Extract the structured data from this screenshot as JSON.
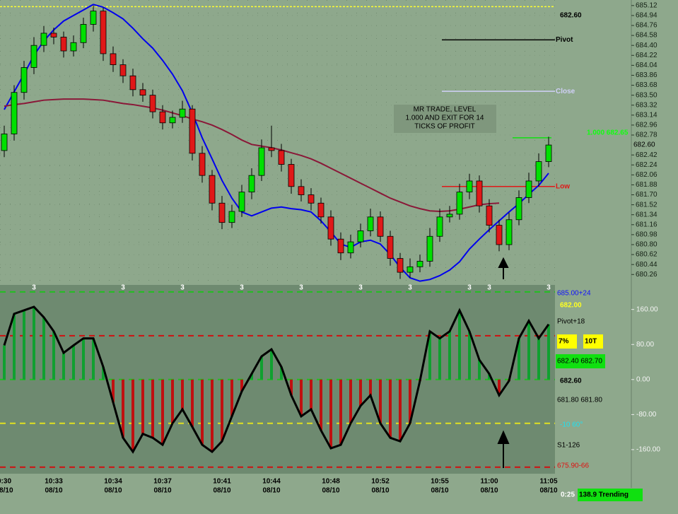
{
  "chart_data": [
    {
      "type": "candlestick",
      "categories": [
        "0:30",
        null,
        null,
        null,
        null,
        "10:33",
        null,
        null,
        null,
        null,
        null,
        "10:34",
        null,
        null,
        null,
        null,
        "10:37",
        null,
        null,
        null,
        null,
        null,
        "10:41",
        null,
        null,
        null,
        null,
        "10:44",
        null,
        null,
        null,
        null,
        null,
        "10:48",
        null,
        null,
        null,
        null,
        "10:52",
        null,
        null,
        null,
        null,
        null,
        "10:55",
        null,
        null,
        null,
        null,
        "11:00",
        null,
        null,
        null,
        null,
        null,
        "11:05"
      ],
      "dates": [
        "08/10",
        null,
        null,
        null,
        null,
        "08/10",
        null,
        null,
        null,
        null,
        null,
        "08/10",
        null,
        null,
        null,
        null,
        "08/10",
        null,
        null,
        null,
        null,
        null,
        "08/10",
        null,
        null,
        null,
        null,
        "08/10",
        null,
        null,
        null,
        null,
        null,
        "08/10",
        null,
        null,
        null,
        null,
        "08/10",
        null,
        null,
        null,
        null,
        null,
        "08/10",
        null,
        null,
        null,
        null,
        "08/10",
        null,
        null,
        null,
        null,
        null,
        "08/10"
      ],
      "open": [
        682.5,
        682.8,
        683.55,
        684.0,
        684.4,
        684.62,
        684.55,
        684.3,
        684.45,
        684.78,
        685.02,
        684.25,
        684.05,
        683.85,
        683.6,
        683.5,
        683.2,
        683.0,
        683.1,
        683.25,
        682.45,
        682.05,
        681.55,
        681.2,
        681.4,
        681.75,
        682.05,
        682.55,
        682.5,
        682.25,
        681.85,
        681.7,
        681.55,
        681.3,
        680.9,
        680.65,
        680.85,
        681.05,
        681.3,
        680.95,
        680.55,
        680.3,
        680.4,
        680.5,
        680.95,
        681.3,
        681.35,
        681.75,
        681.95,
        681.5,
        681.15,
        680.8,
        681.25,
        681.65,
        681.95,
        682.3
      ],
      "high": [
        682.95,
        683.68,
        684.12,
        684.55,
        684.75,
        684.72,
        684.65,
        684.58,
        684.9,
        685.12,
        685.08,
        684.38,
        684.15,
        683.98,
        683.72,
        683.6,
        683.32,
        683.22,
        683.4,
        683.32,
        682.58,
        682.15,
        681.68,
        681.52,
        681.88,
        682.18,
        682.7,
        682.95,
        682.62,
        682.35,
        681.98,
        681.82,
        681.65,
        681.42,
        681.02,
        680.98,
        681.18,
        681.45,
        681.4,
        681.05,
        680.65,
        680.55,
        680.62,
        681.1,
        681.45,
        681.5,
        681.9,
        682.08,
        682.05,
        681.62,
        681.25,
        681.38,
        681.78,
        682.1,
        682.45,
        682.75
      ],
      "low": [
        682.38,
        682.68,
        683.42,
        683.88,
        684.28,
        684.42,
        684.18,
        684.2,
        684.35,
        684.65,
        684.12,
        683.92,
        683.72,
        683.48,
        683.38,
        683.08,
        682.88,
        682.9,
        683.0,
        682.32,
        681.92,
        681.42,
        681.08,
        681.1,
        681.3,
        681.62,
        681.95,
        682.38,
        682.12,
        681.72,
        681.58,
        681.42,
        681.18,
        680.78,
        680.52,
        680.55,
        680.75,
        680.95,
        680.85,
        680.42,
        680.18,
        680.2,
        680.3,
        680.4,
        680.85,
        681.2,
        681.25,
        681.62,
        681.38,
        681.02,
        680.68,
        680.7,
        681.15,
        681.55,
        681.85,
        682.2
      ],
      "close": [
        682.8,
        683.55,
        684.0,
        684.4,
        684.62,
        684.55,
        684.3,
        684.45,
        684.78,
        685.02,
        684.25,
        684.05,
        683.85,
        683.6,
        683.5,
        683.2,
        683.0,
        683.1,
        683.25,
        682.45,
        682.05,
        681.55,
        681.2,
        681.4,
        681.75,
        682.05,
        682.55,
        682.5,
        682.25,
        681.85,
        681.7,
        681.55,
        681.3,
        680.9,
        680.65,
        680.85,
        681.05,
        681.3,
        680.95,
        680.55,
        680.3,
        680.4,
        680.5,
        680.95,
        681.3,
        681.35,
        681.75,
        681.95,
        681.5,
        681.15,
        680.8,
        681.25,
        681.65,
        681.95,
        682.3,
        682.6
      ],
      "up_color": "#00e000",
      "down_color": "#e01818",
      "series": [
        {
          "color": "#0000ee",
          "values": [
            683.24,
            683.56,
            683.88,
            684.22,
            684.48,
            684.68,
            684.84,
            684.94,
            685.04,
            685.14,
            685.09,
            684.99,
            684.88,
            684.71,
            684.52,
            684.35,
            684.13,
            683.88,
            683.58,
            683.18,
            682.73,
            682.35,
            681.96,
            681.64,
            681.39,
            681.32,
            681.39,
            681.46,
            681.48,
            681.45,
            681.43,
            681.39,
            681.23,
            681.03,
            680.81,
            680.75,
            680.85,
            680.88,
            680.81,
            680.62,
            680.39,
            680.2,
            680.14,
            680.17,
            680.24,
            680.34,
            680.49,
            680.72,
            680.9,
            681.07,
            681.23,
            681.39,
            681.54,
            681.71,
            681.87,
            682.09
          ]
        },
        {
          "color": "#8a1838",
          "values": [
            683.3,
            683.33,
            683.35,
            683.38,
            683.41,
            683.42,
            683.43,
            683.43,
            683.43,
            683.42,
            683.41,
            683.38,
            683.35,
            683.33,
            683.3,
            683.27,
            683.23,
            683.18,
            683.13,
            683.07,
            683.02,
            682.96,
            682.88,
            682.79,
            682.69,
            682.61,
            682.58,
            682.55,
            682.51,
            682.46,
            682.41,
            682.35,
            682.27,
            682.18,
            682.09,
            682.0,
            681.91,
            681.82,
            681.73,
            681.64,
            681.57,
            681.5,
            681.45,
            681.41,
            681.4,
            681.41,
            681.44,
            681.48,
            681.52,
            681.54,
            681.55,
            null,
            null,
            null,
            null,
            null
          ]
        }
      ],
      "ylim": [
        680.11,
        685.22
      ],
      "yticks": [
        685.12,
        684.94,
        684.76,
        684.58,
        {
          "value": 684.4,
          "label": "684.40"
        },
        684.22,
        684.04,
        683.86,
        683.68,
        {
          "value": 683.5,
          "label": "683.50"
        },
        683.32,
        683.14,
        682.96,
        682.78,
        682.42,
        682.24,
        682.06,
        681.88,
        {
          "value": 681.7,
          "label": "681.70"
        },
        681.52,
        681.34,
        681.16,
        680.98,
        {
          "value": 680.8,
          "label": "680.80"
        },
        680.62,
        680.44,
        680.26
      ],
      "grid": true,
      "levels": [
        {
          "value": 685.1,
          "color": "#ffff30"
        },
        {
          "value": 684.5,
          "color": "#000000",
          "label": "Pivot"
        },
        {
          "value": 683.57,
          "color": "#d0d0f8",
          "label": "Close"
        },
        {
          "value": 682.73,
          "color": "#10e010"
        },
        {
          "value": 681.85,
          "color": "#e01818",
          "label": "Low"
        }
      ],
      "last_price": {
        "value": 682.6,
        "label": "682.60"
      },
      "target_label": "1.000 682.65",
      "note": [
        "MR TRADE, LEVEL",
        "1.000 AND EXIT FOR 14",
        "TICKS OF PROFIT"
      ]
    },
    {
      "type": "oscillator",
      "values": [
        78,
        150,
        158,
        166,
        142,
        110,
        61,
        78,
        94,
        94,
        29,
        -52,
        -133,
        -165,
        -124,
        -133,
        -149,
        -100,
        -68,
        -108,
        -149,
        -165,
        -141,
        -84,
        -27,
        13,
        53,
        69,
        29,
        -36,
        -84,
        -68,
        -116,
        -157,
        -149,
        -100,
        -60,
        -36,
        -100,
        -133,
        -141,
        -100,
        -3,
        110,
        94,
        110,
        158,
        110,
        45,
        13,
        -36,
        -3,
        94,
        134,
        94,
        126
      ],
      "up_color": "#10a030",
      "down_color": "#c01010",
      "line_color": "#000000",
      "ylim": [
        -215,
        216
      ],
      "yticks": [
        {
          "value": 160,
          "label": "160.00"
        },
        {
          "value": 80,
          "label": "80.00"
        },
        {
          "value": 0,
          "label": "0.00"
        },
        {
          "value": -80,
          "label": "-80.00"
        },
        {
          "value": -160,
          "label": "-160.00"
        }
      ],
      "levels": [
        {
          "value": 200,
          "color": "#20c020"
        },
        {
          "value": 100,
          "color": "#d01010"
        },
        {
          "value": 0,
          "color": "#20c020"
        },
        {
          "value": -100,
          "color": "#e0e020"
        },
        {
          "value": -200,
          "color": "#d01010"
        }
      ],
      "cycle_labels": [
        null,
        null,
        null,
        "3",
        null,
        null,
        null,
        null,
        null,
        null,
        null,
        null,
        "3",
        null,
        null,
        null,
        null,
        null,
        "3",
        null,
        null,
        null,
        null,
        null,
        "3",
        null,
        null,
        null,
        null,
        null,
        "3",
        null,
        null,
        null,
        null,
        null,
        "3",
        null,
        null,
        null,
        null,
        "3",
        null,
        null,
        null,
        null,
        null,
        "3",
        null,
        "3",
        null,
        null,
        null,
        null,
        null,
        "3"
      ],
      "readouts": [
        {
          "text": "685.00+24",
          "color": "#1010ff"
        },
        {
          "text": "682.00",
          "color": "#ffff20"
        },
        {
          "text": "Pivot+18",
          "color": "#000000"
        },
        {
          "text": "7%",
          "color": "#000000"
        },
        {
          "text": "10T",
          "color": "#000000"
        },
        {
          "text": "682.40 682.70",
          "color": "#000000"
        },
        {
          "text": "682.60",
          "color": "#000000"
        },
        {
          "text": "681.80 681.80",
          "color": "#000000"
        },
        {
          "text": "-10  60°",
          "color": "#20e0f0"
        },
        {
          "text": "S1-126",
          "color": "#000000"
        },
        {
          "text": "675.90-66",
          "color": "#e01010"
        }
      ]
    }
  ],
  "status_bar": {
    "time": "0:25",
    "state": "138.9 Trending"
  }
}
